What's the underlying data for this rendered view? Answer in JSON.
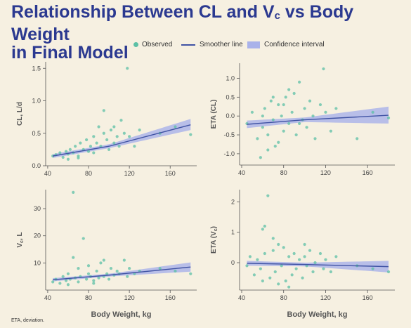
{
  "title": {
    "line1_a": "Relationship Between CL and V",
    "line1_sub": "c",
    "line1_b": " vs Body Weight",
    "line2": "in Final Model"
  },
  "legend": {
    "observed": "Observed",
    "smoother": "Smoother line",
    "ci": "Confidence interval"
  },
  "xlabel": "Body Weight, kg",
  "footnote": "ETA, deviation.",
  "colors": {
    "points": "#5cc0a6",
    "line": "#4053a4",
    "band": "#a9b2ea",
    "title": "#2b3990"
  },
  "chart_data": [
    {
      "type": "scatter",
      "ylabel": "CL, L/d",
      "xlim": [
        38,
        186
      ],
      "ylim": [
        0,
        1.6
      ],
      "xticks": [
        40,
        80,
        120,
        160
      ],
      "yticks": [
        0.0,
        0.5,
        1.0,
        1.5
      ],
      "ytick_labels": [
        "0.0",
        "0.5",
        "1.0",
        "1.5"
      ],
      "smoother": {
        "x": [
          45,
          100,
          180
        ],
        "y": [
          0.15,
          0.3,
          0.63
        ]
      },
      "ci": {
        "x": [
          45,
          100,
          180
        ],
        "lower": [
          0.12,
          0.27,
          0.55
        ],
        "upper": [
          0.18,
          0.33,
          0.72
        ]
      },
      "points": [
        [
          45,
          0.15
        ],
        [
          48,
          0.17
        ],
        [
          52,
          0.2
        ],
        [
          55,
          0.13
        ],
        [
          58,
          0.22
        ],
        [
          60,
          0.18
        ],
        [
          62,
          0.25
        ],
        [
          65,
          0.2
        ],
        [
          67,
          0.3
        ],
        [
          70,
          0.15
        ],
        [
          72,
          0.35
        ],
        [
          75,
          0.25
        ],
        [
          78,
          0.4
        ],
        [
          80,
          0.22
        ],
        [
          82,
          0.3
        ],
        [
          85,
          0.45
        ],
        [
          88,
          0.35
        ],
        [
          90,
          0.6
        ],
        [
          92,
          0.3
        ],
        [
          95,
          0.85
        ],
        [
          98,
          0.4
        ],
        [
          100,
          0.25
        ],
        [
          102,
          0.55
        ],
        [
          105,
          0.35
        ],
        [
          108,
          0.45
        ],
        [
          110,
          0.3
        ],
        [
          115,
          0.5
        ],
        [
          118,
          1.5
        ],
        [
          120,
          0.45
        ],
        [
          125,
          0.3
        ],
        [
          130,
          0.55
        ],
        [
          150,
          0.5
        ],
        [
          165,
          0.6
        ],
        [
          180,
          0.48
        ],
        [
          60,
          0.1
        ],
        [
          70,
          0.12
        ],
        [
          85,
          0.2
        ],
        [
          95,
          0.5
        ],
        [
          105,
          0.6
        ],
        [
          112,
          0.7
        ]
      ]
    },
    {
      "type": "scatter",
      "ylabel": "ETA (CL)",
      "xlim": [
        38,
        186
      ],
      "ylim": [
        -1.3,
        1.4
      ],
      "xticks": [
        40,
        80,
        120,
        160
      ],
      "yticks": [
        -1.0,
        -0.5,
        0.0,
        0.5,
        1.0
      ],
      "ytick_labels": [
        "-1.0",
        "-0.5",
        "0.0",
        "0.5",
        "1.0"
      ],
      "smoother": {
        "x": [
          45,
          100,
          180
        ],
        "y": [
          -0.22,
          -0.1,
          0.02
        ]
      },
      "ci": {
        "x": [
          45,
          100,
          180
        ],
        "lower": [
          -0.32,
          -0.16,
          -0.2
        ],
        "upper": [
          -0.12,
          -0.04,
          0.25
        ]
      },
      "points": [
        [
          45,
          -0.2
        ],
        [
          50,
          0.1
        ],
        [
          55,
          -0.6
        ],
        [
          58,
          -1.1
        ],
        [
          60,
          -0.3
        ],
        [
          62,
          0.2
        ],
        [
          65,
          -0.5
        ],
        [
          68,
          0.4
        ],
        [
          70,
          -0.1
        ],
        [
          72,
          -0.8
        ],
        [
          75,
          0.3
        ],
        [
          78,
          0.0
        ],
        [
          80,
          -0.4
        ],
        [
          82,
          0.5
        ],
        [
          85,
          -0.2
        ],
        [
          88,
          0.1
        ],
        [
          90,
          0.6
        ],
        [
          92,
          -0.5
        ],
        [
          95,
          0.9
        ],
        [
          98,
          -0.1
        ],
        [
          100,
          0.2
        ],
        [
          102,
          -0.3
        ],
        [
          105,
          0.4
        ],
        [
          108,
          0.0
        ],
        [
          110,
          -0.6
        ],
        [
          115,
          0.3
        ],
        [
          118,
          1.25
        ],
        [
          120,
          0.1
        ],
        [
          125,
          -0.4
        ],
        [
          130,
          0.2
        ],
        [
          150,
          -0.6
        ],
        [
          165,
          0.1
        ],
        [
          180,
          -0.05
        ],
        [
          65,
          -0.9
        ],
        [
          75,
          -0.7
        ],
        [
          85,
          0.7
        ],
        [
          60,
          0.0
        ],
        [
          70,
          0.5
        ],
        [
          80,
          0.3
        ],
        [
          95,
          -0.2
        ]
      ]
    },
    {
      "type": "scatter",
      "ylabel": "V",
      "ylabel_sub": "c",
      "ylabel_tail": ", L",
      "xlim": [
        38,
        186
      ],
      "ylim": [
        0,
        37
      ],
      "xticks": [
        40,
        80,
        120,
        160
      ],
      "yticks": [
        10,
        20,
        30
      ],
      "ytick_labels": [
        "10",
        "20",
        "30"
      ],
      "smoother": {
        "x": [
          45,
          100,
          180
        ],
        "y": [
          3.8,
          5.5,
          8.5
        ]
      },
      "ci": {
        "x": [
          45,
          100,
          180
        ],
        "lower": [
          3.2,
          5.0,
          6.8
        ],
        "upper": [
          4.4,
          6.0,
          10.2
        ]
      },
      "points": [
        [
          45,
          3
        ],
        [
          48,
          4
        ],
        [
          52,
          2.5
        ],
        [
          55,
          5
        ],
        [
          58,
          3.5
        ],
        [
          60,
          6
        ],
        [
          62,
          4
        ],
        [
          65,
          12
        ],
        [
          67,
          4.5
        ],
        [
          70,
          3
        ],
        [
          72,
          5
        ],
        [
          75,
          19
        ],
        [
          78,
          4
        ],
        [
          80,
          6
        ],
        [
          82,
          5
        ],
        [
          85,
          3.5
        ],
        [
          88,
          7
        ],
        [
          90,
          4.5
        ],
        [
          92,
          10
        ],
        [
          95,
          5
        ],
        [
          98,
          6
        ],
        [
          100,
          4
        ],
        [
          102,
          8
        ],
        [
          105,
          5.5
        ],
        [
          108,
          7
        ],
        [
          110,
          6
        ],
        [
          115,
          11
        ],
        [
          118,
          5
        ],
        [
          120,
          8
        ],
        [
          125,
          6
        ],
        [
          130,
          7
        ],
        [
          150,
          8
        ],
        [
          165,
          7
        ],
        [
          180,
          6
        ],
        [
          65,
          36
        ],
        [
          70,
          8
        ],
        [
          80,
          9
        ],
        [
          95,
          11
        ],
        [
          60,
          2
        ],
        [
          85,
          2.5
        ]
      ]
    },
    {
      "type": "scatter",
      "ylabel": "ETA (V",
      "ylabel_sub": "c",
      "ylabel_tail": ")",
      "xlim": [
        38,
        186
      ],
      "ylim": [
        -0.9,
        2.4
      ],
      "xticks": [
        40,
        80,
        120,
        160
      ],
      "yticks": [
        0,
        1,
        2
      ],
      "ytick_labels": [
        "0",
        "1",
        "2"
      ],
      "smoother": {
        "x": [
          45,
          100,
          180
        ],
        "y": [
          -0.02,
          -0.06,
          -0.13
        ]
      },
      "ci": {
        "x": [
          45,
          100,
          180
        ],
        "lower": [
          -0.1,
          -0.12,
          -0.32
        ],
        "upper": [
          0.06,
          0.0,
          0.06
        ]
      },
      "points": [
        [
          45,
          -0.1
        ],
        [
          48,
          0.2
        ],
        [
          52,
          -0.4
        ],
        [
          55,
          0.1
        ],
        [
          58,
          -0.2
        ],
        [
          60,
          1.1
        ],
        [
          62,
          0.3
        ],
        [
          65,
          2.2
        ],
        [
          67,
          -0.5
        ],
        [
          70,
          0.4
        ],
        [
          72,
          -0.3
        ],
        [
          75,
          0.6
        ],
        [
          78,
          -0.1
        ],
        [
          80,
          0.5
        ],
        [
          82,
          -0.6
        ],
        [
          85,
          0.2
        ],
        [
          88,
          -0.4
        ],
        [
          90,
          0.3
        ],
        [
          92,
          -0.2
        ],
        [
          95,
          0.1
        ],
        [
          98,
          -0.5
        ],
        [
          100,
          0.2
        ],
        [
          102,
          -0.1
        ],
        [
          105,
          0.4
        ],
        [
          108,
          -0.3
        ],
        [
          110,
          0.0
        ],
        [
          115,
          0.3
        ],
        [
          118,
          -0.2
        ],
        [
          120,
          0.1
        ],
        [
          125,
          -0.3
        ],
        [
          130,
          0.2
        ],
        [
          150,
          -0.1
        ],
        [
          165,
          -0.2
        ],
        [
          180,
          -0.3
        ],
        [
          62,
          1.2
        ],
        [
          70,
          0.8
        ],
        [
          75,
          -0.7
        ],
        [
          85,
          -0.8
        ],
        [
          100,
          0.6
        ],
        [
          60,
          -0.6
        ]
      ]
    }
  ]
}
